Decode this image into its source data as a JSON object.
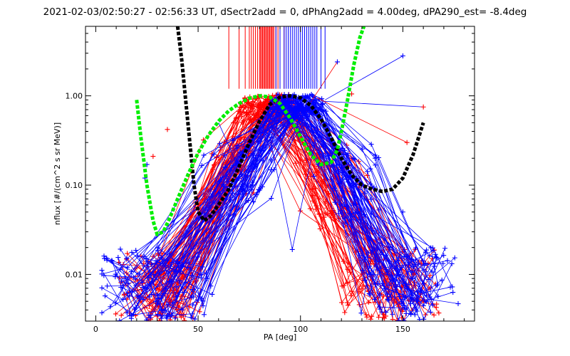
{
  "chart_data": {
    "type": "line",
    "title": "2021-02-03/02:50:27 - 02:56:33 UT, dSectr2add = 0, dPhAng2add = 4.00deg, dPA290_est=  -8.4deg",
    "xlabel": "PA [deg]",
    "ylabel": "nflux [#/(cm^2 s sr MeV)]",
    "xlim": [
      -5,
      185
    ],
    "ylim": [
      0.003,
      6
    ],
    "y_scale": "log",
    "grid": false,
    "x_ticks": [
      0,
      50,
      100,
      150
    ],
    "x_tick_labels": [
      "0",
      "50",
      "100",
      "150"
    ],
    "y_ticks": [
      0.01,
      0.1,
      1.0
    ],
    "y_tick_labels": [
      "0.01",
      "0.10",
      "1.00"
    ],
    "colors": {
      "red_group": "#ff0000",
      "blue_group": "#0000ff",
      "black_fit": "#000000",
      "green_fit": "#00ee00"
    },
    "red_bundle": {
      "peak_x_range": [
        72,
        95
      ],
      "peak_y": [
        0.6,
        1.05
      ],
      "left_x_range": [
        25,
        52
      ],
      "right_x_range": [
        120,
        158
      ],
      "low_y": [
        0.003,
        0.02
      ],
      "count": 70
    },
    "blue_bundle": {
      "peak_x_range": [
        88,
        108
      ],
      "peak_y": [
        0.7,
        1.05
      ],
      "left_x_range": [
        12,
        60
      ],
      "right_x_range": [
        128,
        165
      ],
      "low_y": [
        0.003,
        0.02
      ],
      "count": 70
    },
    "red_vlines_x": [
      65,
      70,
      73,
      75,
      76,
      77,
      78,
      79,
      80,
      80.5,
      81,
      81.5,
      82,
      82.5,
      83,
      83.5,
      84,
      84.5,
      85,
      85.5,
      86,
      86.5,
      87,
      88,
      89,
      90,
      92
    ],
    "blue_vlines_x": [
      88,
      90,
      92,
      93,
      94,
      95,
      96,
      97,
      98,
      99,
      100,
      101,
      102,
      103,
      104,
      105,
      106,
      107,
      108,
      110,
      112
    ],
    "black_fit": {
      "x": [
        40,
        42,
        45,
        48,
        50,
        53,
        56,
        60,
        65,
        70,
        75,
        80,
        85,
        90,
        95,
        100,
        105,
        110,
        115,
        120,
        125,
        130,
        135,
        140,
        145,
        150,
        155,
        160
      ],
      "y": [
        6,
        2.5,
        0.5,
        0.1,
        0.05,
        0.04,
        0.045,
        0.06,
        0.09,
        0.16,
        0.3,
        0.52,
        0.8,
        0.97,
        1.0,
        0.95,
        0.78,
        0.55,
        0.34,
        0.2,
        0.13,
        0.1,
        0.09,
        0.085,
        0.09,
        0.12,
        0.22,
        0.5
      ]
    },
    "green_fit": {
      "x": [
        20,
        22,
        25,
        28,
        30,
        33,
        36,
        40,
        45,
        50,
        55,
        60,
        65,
        70,
        75,
        80,
        85,
        90,
        95,
        100,
        105,
        110,
        115,
        118,
        120,
        123,
        126,
        129,
        131
      ],
      "y": [
        0.9,
        0.35,
        0.1,
        0.04,
        0.028,
        0.03,
        0.042,
        0.07,
        0.13,
        0.23,
        0.36,
        0.52,
        0.68,
        0.82,
        0.94,
        1.0,
        0.97,
        0.82,
        0.56,
        0.35,
        0.22,
        0.17,
        0.18,
        0.25,
        0.4,
        0.9,
        2.2,
        4.5,
        6
      ]
    },
    "scatter_points": [
      {
        "x": 77,
        "y": 0.065,
        "color": "blue"
      },
      {
        "x": 96,
        "y": 0.019,
        "color": "blue"
      },
      {
        "x": 150,
        "y": 2.8,
        "color": "blue"
      },
      {
        "x": 118,
        "y": 2.4,
        "color": "blue"
      },
      {
        "x": 125,
        "y": 1.05,
        "color": "red"
      },
      {
        "x": 160,
        "y": 0.75,
        "color": "red"
      },
      {
        "x": 152,
        "y": 0.3,
        "color": "red"
      },
      {
        "x": 28,
        "y": 0.21,
        "color": "red"
      },
      {
        "x": 35,
        "y": 0.42,
        "color": "red"
      },
      {
        "x": 25,
        "y": 0.17,
        "color": "blue"
      },
      {
        "x": 24,
        "y": 0.12,
        "color": "blue"
      },
      {
        "x": 150,
        "y": 0.05,
        "color": "blue"
      }
    ]
  }
}
